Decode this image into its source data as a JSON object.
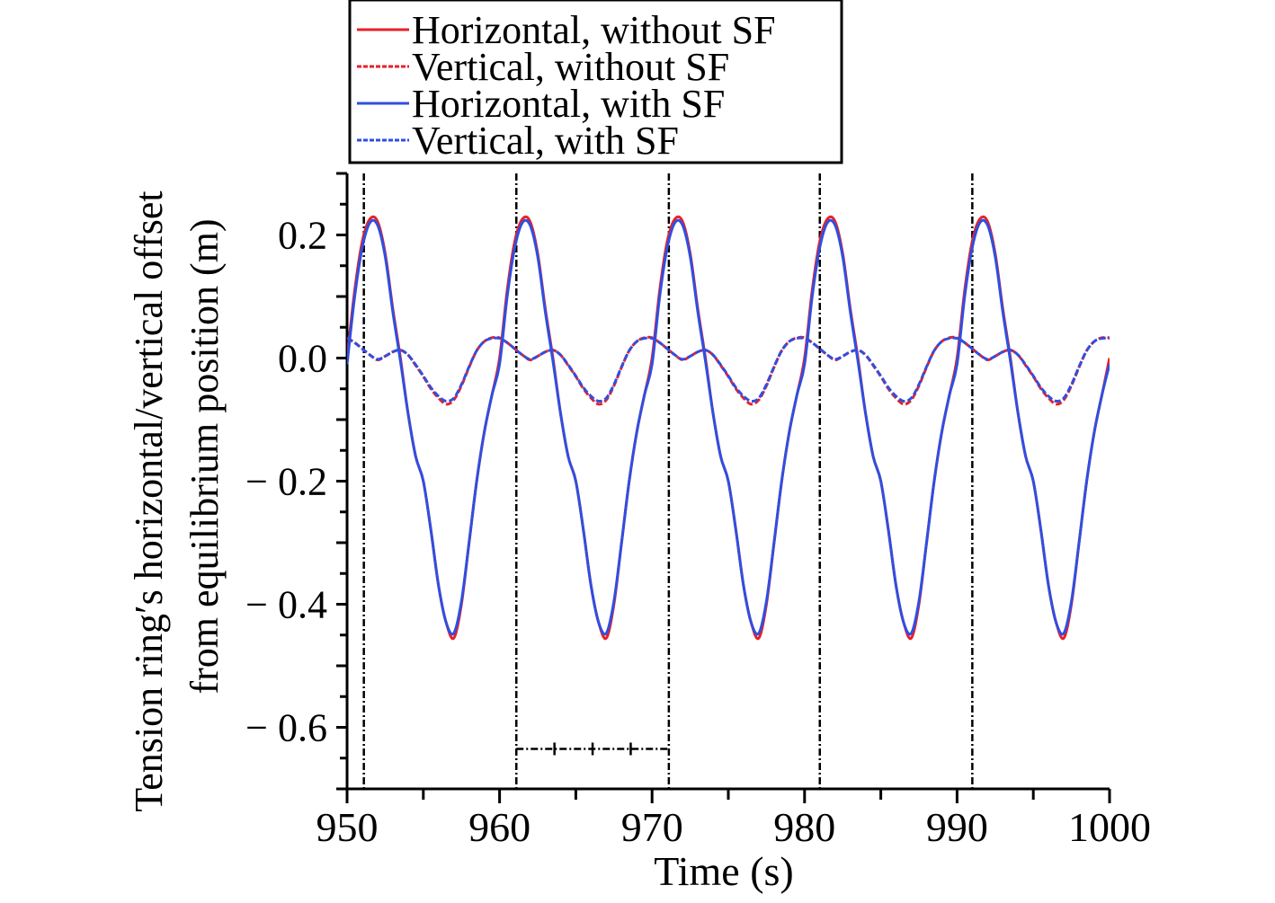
{
  "chart_data": {
    "type": "line",
    "title": "",
    "xlabel": "Time (s)",
    "ylabel_lines": [
      "Tension ring′s horizontal/vertical offset",
      "from equilibrium position (m)"
    ],
    "xlim": [
      950,
      1000
    ],
    "ylim": [
      -0.7,
      0.3
    ],
    "xticks": [
      950,
      960,
      970,
      980,
      990,
      1000
    ],
    "xtick_labels": [
      "950",
      "960",
      "970",
      "980",
      "990",
      "1000"
    ],
    "yticks": [
      0.2,
      0.0,
      -0.2,
      -0.4,
      -0.6
    ],
    "ytick_labels": [
      "0.2",
      "0.0",
      "− 0.2",
      "− 0.4",
      "− 0.6"
    ],
    "grid": false,
    "legend_position": "top (above plot)",
    "reference_lines_x": [
      951.1,
      961.1,
      971.1,
      981.0,
      991.0
    ],
    "period_marker": {
      "x_start": 961.1,
      "x_end": 971.1,
      "y": -0.635
    },
    "period_values": [
      0.0,
      0.09,
      0.17,
      0.215,
      0.228,
      0.19,
      0.1,
      0.0,
      -0.09,
      -0.16,
      -0.2,
      -0.28,
      -0.37,
      -0.43,
      -0.455,
      -0.4,
      -0.3,
      -0.2,
      -0.12,
      -0.06
    ],
    "x_step": 0.5,
    "series": [
      {
        "name": "Horizontal, without SF",
        "color": "#e8202a",
        "dash": "solid",
        "period_values": [
          0.0,
          0.11,
          0.19,
          0.226,
          0.222,
          0.17,
          0.08,
          0.0,
          -0.09,
          -0.16,
          -0.2,
          -0.28,
          -0.37,
          -0.43,
          -0.455,
          -0.4,
          -0.3,
          -0.2,
          -0.12,
          -0.06
        ],
        "end_value": 0.0
      },
      {
        "name": "Vertical, without SF",
        "color": "#e8202a",
        "dash": "dashed",
        "period_values": [
          0.033,
          0.025,
          0.015,
          0.005,
          -0.003,
          0.003,
          0.01,
          0.013,
          0.005,
          -0.012,
          -0.03,
          -0.05,
          -0.065,
          -0.075,
          -0.068,
          -0.045,
          -0.015,
          0.012,
          0.027,
          0.033
        ],
        "end_value": 0.033
      },
      {
        "name": "Horizontal, with SF",
        "color": "#2f4fe0",
        "dash": "solid",
        "period_values": [
          -0.01,
          0.1,
          0.18,
          0.22,
          0.216,
          0.165,
          0.075,
          -0.005,
          -0.09,
          -0.16,
          -0.2,
          -0.28,
          -0.37,
          -0.43,
          -0.447,
          -0.395,
          -0.3,
          -0.2,
          -0.12,
          -0.06
        ],
        "end_value": -0.01
      },
      {
        "name": "Vertical, with SF",
        "color": "#2f4fe0",
        "dash": "dashed",
        "period_values": [
          0.032,
          0.025,
          0.015,
          0.005,
          -0.002,
          0.003,
          0.01,
          0.013,
          0.005,
          -0.011,
          -0.029,
          -0.048,
          -0.062,
          -0.07,
          -0.065,
          -0.043,
          -0.014,
          0.012,
          0.027,
          0.032
        ],
        "end_value": 0.032
      }
    ]
  }
}
